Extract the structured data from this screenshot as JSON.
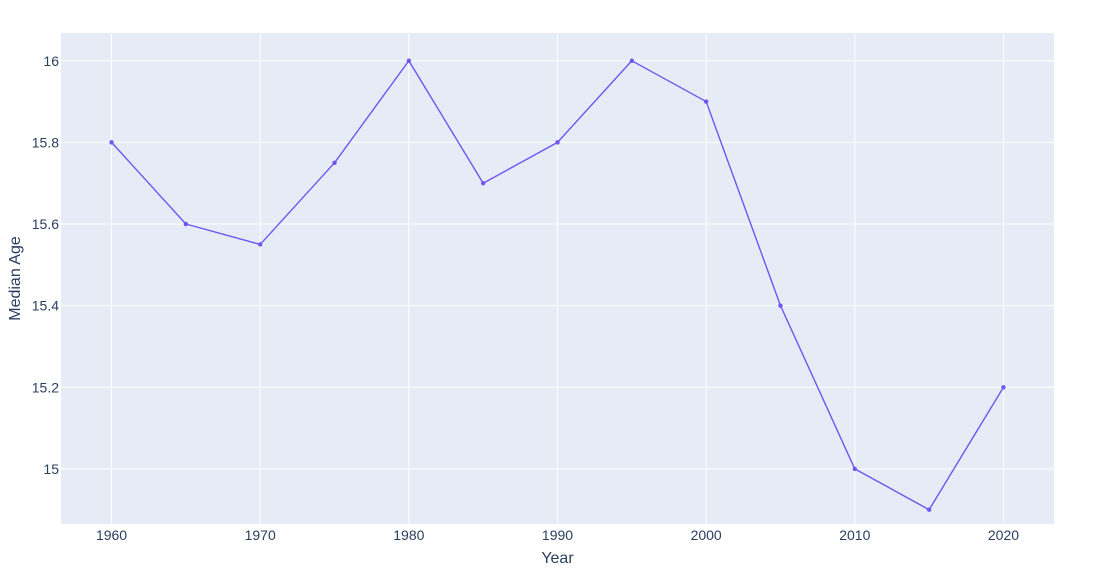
{
  "chart_data": {
    "type": "line",
    "title": "",
    "xlabel": "Year",
    "ylabel": "Median Age",
    "x": [
      1960,
      1965,
      1970,
      1975,
      1980,
      1985,
      1990,
      1995,
      2000,
      2005,
      2010,
      2015,
      2020
    ],
    "series": [
      {
        "values": [
          15.8,
          15.6,
          15.55,
          15.75,
          16.0,
          15.7,
          15.8,
          16.0,
          15.9,
          15.4,
          15.0,
          14.9,
          15.2
        ],
        "color": "#7055f0"
      }
    ],
    "xlim": [
      1956.6,
      2023.4
    ],
    "ylim": [
      14.865,
      16.068
    ],
    "xticks": [
      1960,
      1970,
      1980,
      1990,
      2000,
      2010,
      2020
    ],
    "xtick_labels": [
      "1960",
      "1970",
      "1980",
      "1990",
      "2000",
      "2010",
      "2020"
    ],
    "yticks": [
      15.0,
      15.2,
      15.4,
      15.6,
      15.8,
      16.0
    ],
    "ytick_labels": [
      "15",
      "15.2",
      "15.4",
      "15.6",
      "15.8",
      "16"
    ],
    "grid": true,
    "legend": "none",
    "colors": {
      "plot_background": "#e5ecf6",
      "grid": "#ffffff",
      "text": "#2a3f5f",
      "line": "#7055f0"
    }
  }
}
